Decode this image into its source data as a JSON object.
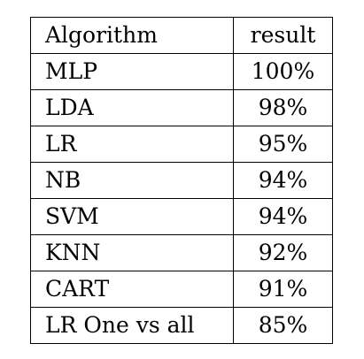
{
  "table": {
    "headers": {
      "algorithm": "Algorithm",
      "result": "result"
    },
    "rows": [
      {
        "algorithm": "MLP",
        "result": "100%"
      },
      {
        "algorithm": "LDA",
        "result": "98%"
      },
      {
        "algorithm": "LR",
        "result": "95%"
      },
      {
        "algorithm": "NB",
        "result": "94%"
      },
      {
        "algorithm": "SVM",
        "result": "94%"
      },
      {
        "algorithm": "KNN",
        "result": "92%"
      },
      {
        "algorithm": "CART",
        "result": "91%"
      },
      {
        "algorithm": "LR One vs all",
        "result": "85%"
      }
    ]
  }
}
